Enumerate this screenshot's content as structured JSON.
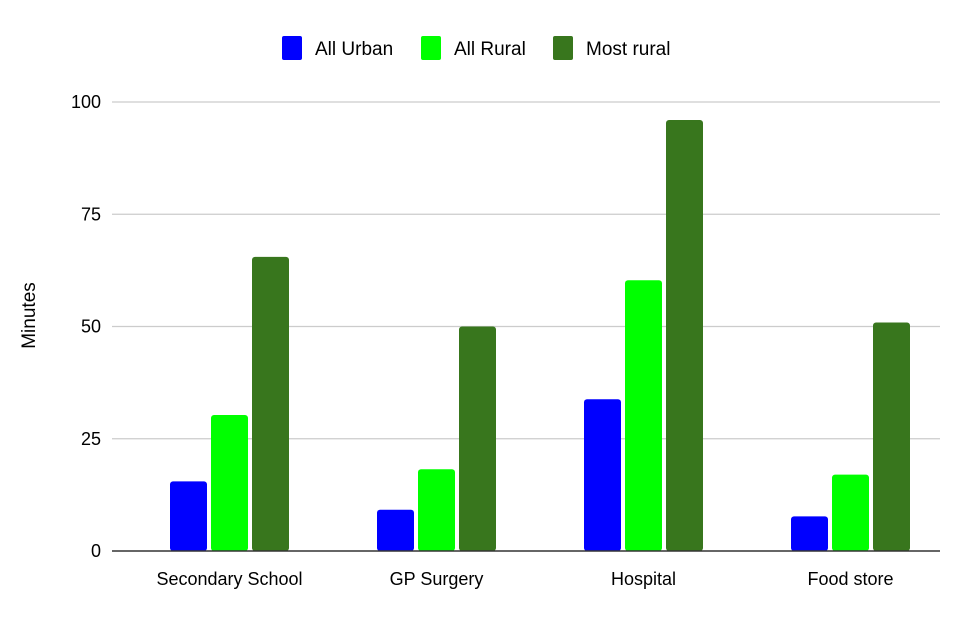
{
  "chart_data": {
    "type": "bar",
    "title": "",
    "xlabel": "",
    "ylabel": "Minutes",
    "ylim": [
      0,
      100
    ],
    "yticks": [
      0,
      25,
      50,
      75,
      100
    ],
    "grid": true,
    "legend_position": "top-center",
    "categories": [
      "Secondary School",
      "GP Surgery",
      "Hospital",
      "Food store"
    ],
    "series": [
      {
        "name": "All Urban",
        "color": "#0000ff",
        "values": [
          15.5,
          9.2,
          33.8,
          7.7
        ]
      },
      {
        "name": "All Rural",
        "color": "#00ff00",
        "values": [
          30.3,
          18.2,
          60.3,
          17.0
        ]
      },
      {
        "name": "Most rural",
        "color": "#38761d",
        "values": [
          65.5,
          50.0,
          96.0,
          50.9
        ]
      }
    ]
  }
}
